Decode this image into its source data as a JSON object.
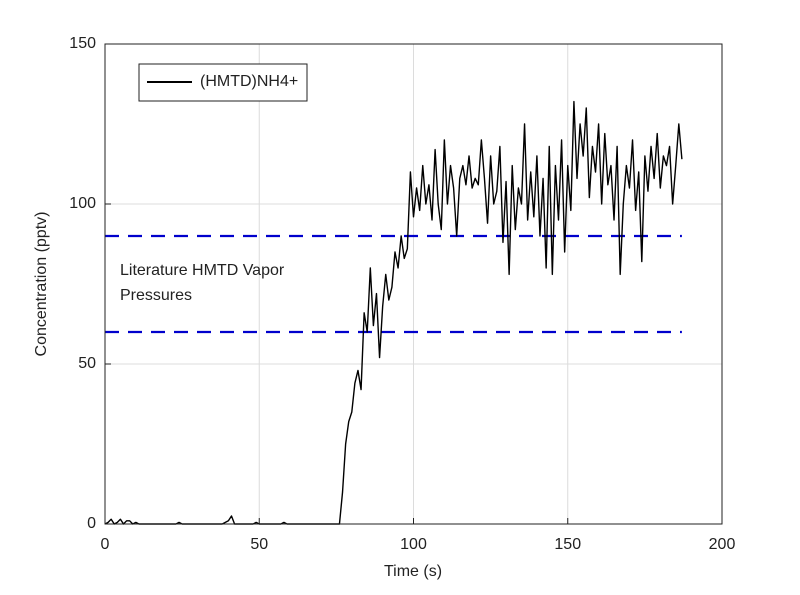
{
  "chart_data": {
    "type": "line",
    "xlabel": "Time (s)",
    "ylabel": "Concentration (pptv)",
    "xlim": [
      0,
      200
    ],
    "xticks": [
      0,
      50,
      100,
      150,
      200
    ],
    "ylim": [
      0,
      150
    ],
    "yticks": [
      0,
      50,
      100,
      150
    ],
    "grid": true,
    "legend_position": "upper left",
    "x": [
      0,
      1,
      2,
      3,
      4,
      5,
      6,
      7,
      8,
      9,
      10,
      11,
      12,
      13,
      14,
      15,
      16,
      17,
      18,
      19,
      20,
      21,
      22,
      23,
      24,
      25,
      26,
      27,
      28,
      29,
      30,
      31,
      32,
      33,
      34,
      35,
      36,
      37,
      38,
      39,
      40,
      41,
      42,
      43,
      44,
      45,
      46,
      47,
      48,
      49,
      50,
      51,
      52,
      53,
      54,
      55,
      56,
      57,
      58,
      59,
      60,
      61,
      62,
      63,
      64,
      65,
      66,
      67,
      68,
      69,
      70,
      71,
      72,
      73,
      74,
      75,
      76,
      77,
      78,
      79,
      80,
      81,
      82,
      83,
      84,
      85,
      86,
      87,
      88,
      89,
      90,
      91,
      92,
      93,
      94,
      95,
      96,
      97,
      98,
      99,
      100,
      101,
      102,
      103,
      104,
      105,
      106,
      107,
      108,
      109,
      110,
      111,
      112,
      113,
      114,
      115,
      116,
      117,
      118,
      119,
      120,
      121,
      122,
      123,
      124,
      125,
      126,
      127,
      128,
      129,
      130,
      131,
      132,
      133,
      134,
      135,
      136,
      137,
      138,
      139,
      140,
      141,
      142,
      143,
      144,
      145,
      146,
      147,
      148,
      149,
      150,
      151,
      152,
      153,
      154,
      155,
      156,
      157,
      158,
      159,
      160,
      161,
      162,
      163,
      164,
      165,
      166,
      167,
      168,
      169,
      170,
      171,
      172,
      173,
      174,
      175,
      176,
      177,
      178,
      179,
      180,
      181,
      182,
      183,
      184,
      185,
      186,
      187
    ],
    "series": [
      {
        "name": "(HMTD)NH4+",
        "color": "#000000",
        "values": [
          0,
          0.5,
          1.5,
          0,
          0.5,
          1.5,
          0,
          1,
          1,
          0,
          0.5,
          0,
          0,
          0,
          0,
          0,
          0,
          0,
          0,
          0,
          0,
          0,
          0,
          0,
          0.5,
          0,
          0,
          0,
          0,
          0,
          0,
          0,
          0,
          0,
          0,
          0,
          0,
          0,
          0,
          0.5,
          1,
          2.5,
          0,
          0,
          0,
          0,
          0,
          0,
          0,
          0.5,
          0,
          0,
          0,
          0,
          0,
          0,
          0,
          0,
          0.5,
          0,
          0,
          0,
          0,
          0,
          0,
          0,
          0,
          0,
          0,
          0,
          0,
          0,
          0,
          0,
          0,
          0,
          0,
          10,
          25,
          32,
          35,
          44,
          48,
          42,
          66,
          60,
          80,
          62,
          72,
          52,
          68,
          78,
          70,
          74,
          85,
          80,
          90,
          83,
          86,
          110,
          96,
          105,
          98,
          112,
          100,
          106,
          95,
          117,
          100,
          92,
          120,
          100,
          112,
          105,
          90,
          108,
          112,
          106,
          115,
          105,
          108,
          106,
          120,
          108,
          94,
          115,
          100,
          104,
          118,
          88,
          107,
          78,
          112,
          92,
          105,
          100,
          125,
          95,
          110,
          96,
          115,
          90,
          108,
          80,
          118,
          78,
          112,
          95,
          120,
          85,
          112,
          98,
          132,
          108,
          125,
          115,
          130,
          102,
          118,
          110,
          125,
          100,
          122,
          106,
          112,
          95,
          118,
          78,
          100,
          112,
          105,
          120,
          98,
          110,
          82,
          115,
          104,
          118,
          108,
          122,
          105,
          115,
          112,
          118,
          100,
          112,
          125,
          114
        ]
      }
    ],
    "reference_lines": [
      {
        "value": 90,
        "color": "#0000cc"
      },
      {
        "value": 60,
        "color": "#0000cc"
      }
    ],
    "annotation_lines": [
      "Literature HMTD Vapor",
      "Pressures"
    ]
  }
}
